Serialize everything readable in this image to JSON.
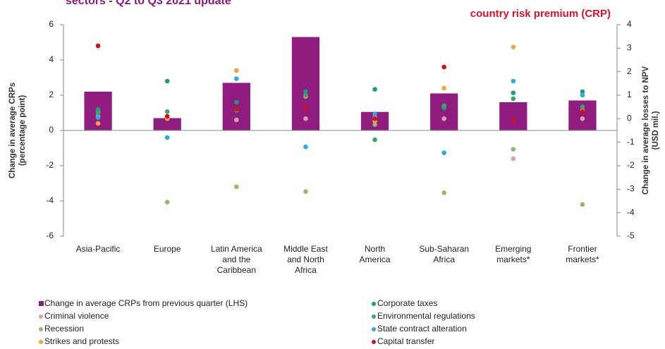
{
  "chart_data": {
    "type": "bar",
    "title": "sectors - Q2 to Q3 2021 update",
    "subtitle": "country risk premium (CRP)",
    "y_label": [
      "Change in average CRPs",
      "(percentage point)"
    ],
    "y2_label": [
      "Change in average losses to NPV",
      "(USD mil.)"
    ],
    "categories": [
      "Asia-Pacific",
      "Europe",
      "Latin America\nand the\nCaribbean",
      "Middle East\nand North\nAfrica",
      "North\nAmerica",
      "Sub-Saharan\nAfrica",
      "Emerging\nmarkets*",
      "Frontier\nmarkets*"
    ],
    "bar_series": {
      "name": "Change in average CRPs from previous quarter (LHS)",
      "color": "#911c80",
      "values": [
        2.2,
        0.7,
        2.7,
        5.3,
        1.05,
        2.1,
        1.6,
        1.7
      ]
    },
    "series": [
      {
        "name": "Criminal violence",
        "color": "#d4a3a8",
        "axis": "y2",
        "values": [
          0.1,
          0,
          -0.05,
          0,
          0.05,
          0,
          -1.7,
          0
        ]
      },
      {
        "name": "Recession",
        "color": "#8fbc6a",
        "axis": "y2",
        "values": [
          0.3,
          -3.55,
          -2.9,
          -3.1,
          -0.25,
          -3.15,
          -1.3,
          -3.65
        ]
      },
      {
        "name": "Strikes and protests",
        "color": "#f5a23c",
        "axis": "y2",
        "values": [
          -0.2,
          0,
          2.05,
          0.95,
          -0.1,
          1.3,
          3.05,
          0.35
        ]
      },
      {
        "name": "Corporate taxes",
        "color": "#1b9a7c",
        "axis": "y2",
        "values": [
          0.4,
          1.6,
          0.7,
          1.15,
          1.25,
          0.45,
          1.1,
          1.15
        ]
      },
      {
        "name": "Environmental regulations",
        "color": "#3aa66f",
        "axis": "y2",
        "values": [
          0.25,
          0.3,
          0.35,
          1.0,
          -0.9,
          0.55,
          0.85,
          0.5
        ]
      },
      {
        "name": "State contract alteration",
        "color": "#2aaae2",
        "axis": "y2",
        "values": [
          0.05,
          -0.8,
          1.7,
          -1.2,
          0.2,
          -1.45,
          1.6,
          1.0
        ]
      },
      {
        "name": "Capital transfer",
        "color": "#d0121b",
        "axis": "y2",
        "values": [
          3.1,
          0.1,
          0.4,
          0.45,
          0,
          2.2,
          -0.1,
          0.3
        ]
      }
    ],
    "ylim": [
      -6,
      6
    ],
    "yticks": [
      -6,
      -4,
      -2,
      0,
      2,
      4,
      6
    ],
    "y2lim": [
      -5,
      4
    ],
    "y2ticks": [
      -5,
      -4,
      -3,
      -2,
      -1,
      0,
      1,
      2,
      3,
      4
    ]
  }
}
